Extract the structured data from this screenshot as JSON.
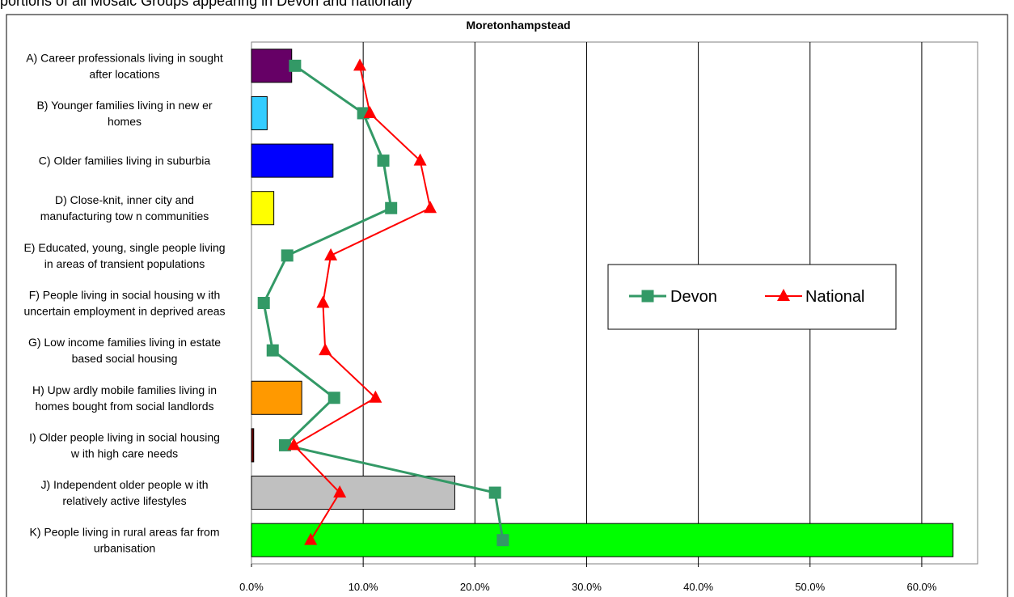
{
  "page": {
    "caption": "portions of all Mosaic Groups appearing in Devon and nationally"
  },
  "chart_data": {
    "type": "bar",
    "title": "Moretonhampstead",
    "orientation": "horizontal",
    "categories": [
      [
        "A) Career professionals living in sought",
        "after locations"
      ],
      [
        "B) Younger families living in new er",
        "homes"
      ],
      [
        "C) Older families living in suburbia"
      ],
      [
        "D) Close-knit, inner city and",
        "manufacturing tow n communities"
      ],
      [
        "E) Educated, young, single people living",
        "in areas of transient populations"
      ],
      [
        "F) People living in social housing w ith",
        "uncertain employment in deprived areas"
      ],
      [
        "G) Low income families living in estate",
        "based social housing"
      ],
      [
        "H) Upw ardly mobile families living in",
        "homes bought from social landlords"
      ],
      [
        "I) Older people living in social housing",
        "w ith high care needs"
      ],
      [
        "J) Independent older people w ith",
        "relatively active lifestyles"
      ],
      [
        "K) People living in rural areas far from",
        "urbanisation"
      ]
    ],
    "bar_values": [
      3.6,
      1.4,
      7.3,
      2.0,
      0.0,
      0.0,
      0.0,
      4.5,
      0.2,
      18.2,
      62.8
    ],
    "bar_colors": [
      "#660066",
      "#33ccff",
      "#0000ff",
      "#ffff00",
      "#ffffff",
      "#ffffff",
      "#ffffff",
      "#ff9900",
      "#660000",
      "#c0c0c0",
      "#00ff00"
    ],
    "series": [
      {
        "name": "Devon",
        "color": "#339966",
        "marker": "square",
        "values": [
          3.9,
          10.0,
          11.8,
          12.5,
          3.2,
          1.1,
          1.9,
          7.4,
          3.0,
          21.8,
          22.5
        ]
      },
      {
        "name": "National",
        "color": "#ff0000",
        "marker": "triangle",
        "values": [
          9.7,
          10.6,
          15.1,
          16.0,
          7.1,
          6.4,
          6.6,
          11.1,
          3.8,
          7.9,
          5.3
        ]
      }
    ],
    "xlim": [
      0,
      65
    ],
    "xticks": [
      "0.0%",
      "10.0%",
      "20.0%",
      "30.0%",
      "40.0%",
      "50.0%",
      "60.0%"
    ],
    "xtick_values": [
      0,
      10,
      20,
      30,
      40,
      50,
      60
    ],
    "grid": "vertical",
    "legend": {
      "placement": "right-middle"
    }
  }
}
